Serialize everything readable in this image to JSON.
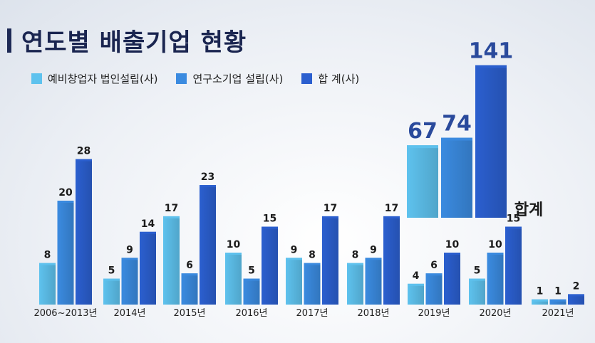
{
  "chart_data": {
    "type": "bar",
    "title": "연도별 배출기업 현황",
    "categories": [
      "2006~2013년",
      "2014년",
      "2015년",
      "2016년",
      "2017년",
      "2018년",
      "2019년",
      "2020년",
      "2021년"
    ],
    "series": [
      {
        "name": "예비창업자 법인설립(사)",
        "values": [
          8,
          5,
          17,
          10,
          9,
          8,
          4,
          5,
          1
        ],
        "color": "#5ec2ee"
      },
      {
        "name": "연구소기업 설립(사)",
        "values": [
          20,
          9,
          6,
          5,
          8,
          9,
          6,
          10,
          1
        ],
        "color": "#3b8be0"
      },
      {
        "name": "합 계(사)",
        "values": [
          28,
          14,
          23,
          15,
          17,
          17,
          10,
          15,
          2
        ],
        "color": "#2b5fcf"
      }
    ],
    "total": {
      "label": "합계",
      "values": [
        67,
        74,
        141
      ]
    },
    "legend_position": "top-left",
    "grid": false
  }
}
